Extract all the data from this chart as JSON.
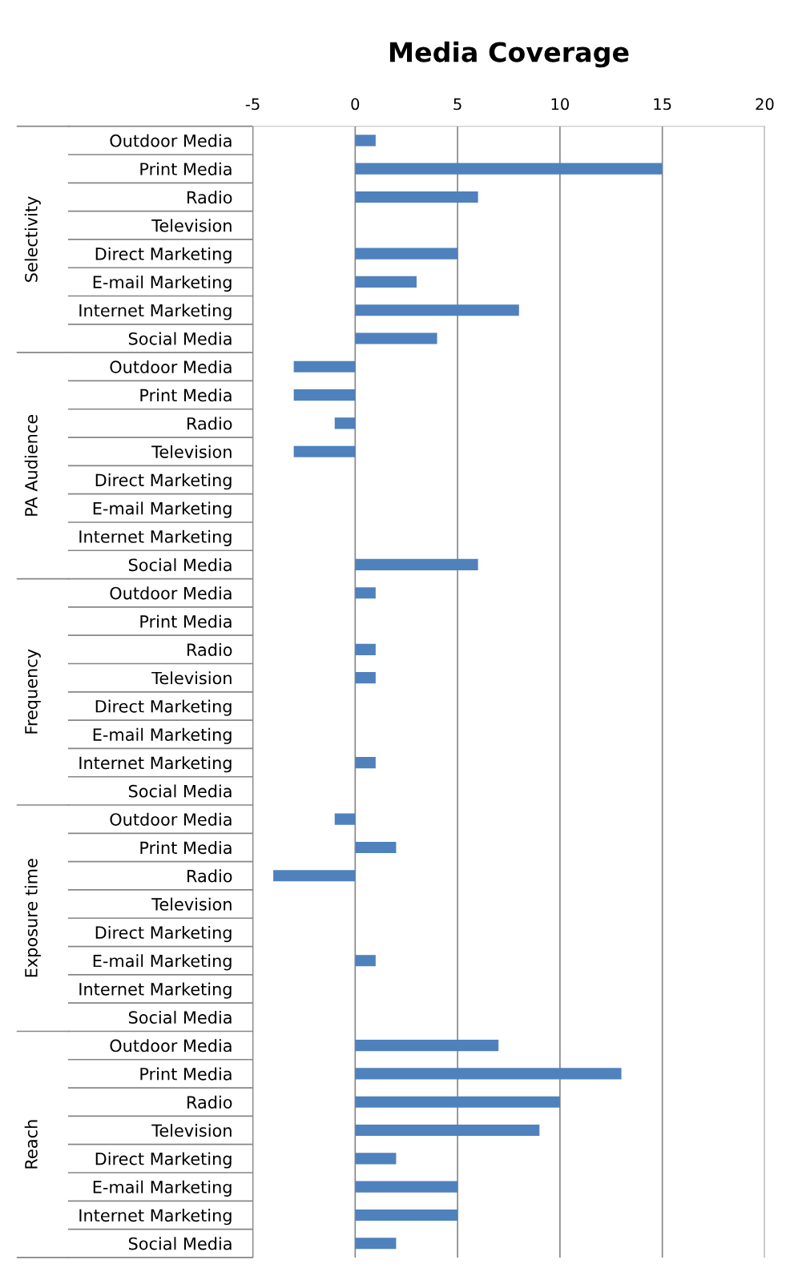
{
  "chart_data": {
    "type": "bar",
    "orientation": "horizontal",
    "title": "Media Coverage",
    "categories": [
      "Outdoor Media",
      "Print Media",
      "Radio",
      "Television",
      "Direct Marketing",
      "E-mail Marketing",
      "Internet Marketing",
      "Social Media",
      "Outdoor Media",
      "Print Media",
      "Radio",
      "Television",
      "Direct Marketing",
      "E-mail Marketing",
      "Internet Marketing",
      "Social Media",
      "Outdoor Media",
      "Print Media",
      "Radio",
      "Television",
      "Direct Marketing",
      "E-mail Marketing",
      "Internet Marketing",
      "Social Media",
      "Outdoor Media",
      "Print Media",
      "Radio",
      "Television",
      "Direct Marketing",
      "E-mail Marketing",
      "Internet Marketing",
      "Social Media",
      "Outdoor Media",
      "Print Media",
      "Radio",
      "Television",
      "Direct Marketing",
      "E-mail Marketing",
      "Internet Marketing",
      "Social Media"
    ],
    "values": [
      1,
      15,
      6,
      0,
      5,
      3,
      8,
      4,
      -3,
      -3,
      -1,
      -3,
      0,
      0,
      0,
      6,
      1,
      0,
      1,
      1,
      0,
      0,
      1,
      0,
      -1,
      2,
      -4,
      0,
      0,
      1,
      0,
      0,
      7,
      13,
      10,
      9,
      2,
      5,
      5,
      2
    ],
    "color": "#4f81bd",
    "annotations": [
      "Selectivity",
      "PA Audience",
      "Frequency",
      "Exposure time",
      "Reach"
    ],
    "xlim": [
      -5,
      20
    ],
    "xticks": [
      -5,
      0,
      5,
      10,
      15,
      20
    ],
    "grid": "x",
    "legend": false
  }
}
